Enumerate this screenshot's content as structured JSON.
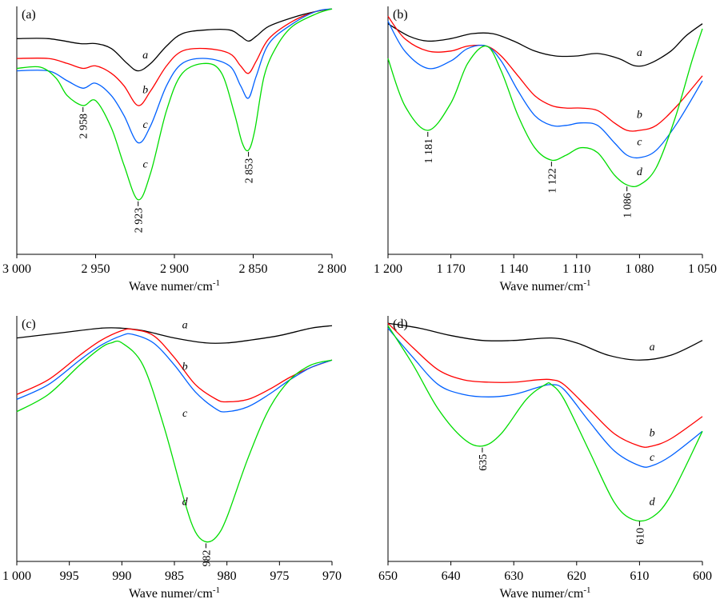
{
  "chart_data": [
    {
      "type": "line",
      "panel": "(a)",
      "xlabel": "Wave numer/cm",
      "xlabel_sup": "-1",
      "xlim": [
        3000,
        2800
      ],
      "xticks": [
        3000,
        2950,
        2900,
        2850,
        2800
      ],
      "xtick_labels": [
        "3 000",
        "2 950",
        "2 900",
        "2 850",
        "2 800"
      ],
      "ylim": [
        0,
        1
      ],
      "series": [
        {
          "name": "a",
          "color": "#000000",
          "x": [
            3000,
            2980,
            2960,
            2950,
            2940,
            2930,
            2923,
            2915,
            2905,
            2895,
            2880,
            2865,
            2858,
            2853,
            2848,
            2840,
            2825,
            2810,
            2800
          ],
          "y": [
            0.87,
            0.87,
            0.85,
            0.85,
            0.83,
            0.77,
            0.74,
            0.77,
            0.84,
            0.89,
            0.905,
            0.905,
            0.88,
            0.86,
            0.88,
            0.92,
            0.955,
            0.98,
            0.99
          ]
        },
        {
          "name": "b",
          "color": "#ff0000",
          "x": [
            3000,
            2980,
            2968,
            2958,
            2950,
            2940,
            2932,
            2923,
            2915,
            2905,
            2895,
            2880,
            2865,
            2858,
            2853,
            2848,
            2840,
            2825,
            2810,
            2800
          ],
          "y": [
            0.79,
            0.79,
            0.77,
            0.75,
            0.76,
            0.73,
            0.68,
            0.6,
            0.66,
            0.76,
            0.82,
            0.83,
            0.81,
            0.76,
            0.73,
            0.78,
            0.87,
            0.94,
            0.98,
            0.99
          ]
        },
        {
          "name": "c",
          "color": "#0060ff",
          "x": [
            3000,
            2980,
            2968,
            2958,
            2950,
            2940,
            2932,
            2923,
            2915,
            2905,
            2895,
            2880,
            2865,
            2858,
            2853,
            2848,
            2840,
            2825,
            2810,
            2800
          ],
          "y": [
            0.74,
            0.74,
            0.7,
            0.67,
            0.69,
            0.64,
            0.56,
            0.45,
            0.52,
            0.68,
            0.77,
            0.79,
            0.76,
            0.68,
            0.63,
            0.72,
            0.85,
            0.93,
            0.98,
            0.99
          ]
        },
        {
          "name": "c",
          "color": "#00dd00",
          "x": [
            3000,
            2985,
            2975,
            2968,
            2958,
            2950,
            2940,
            2932,
            2923,
            2915,
            2905,
            2895,
            2880,
            2870,
            2862,
            2857,
            2853,
            2849,
            2843,
            2835,
            2825,
            2810,
            2800
          ],
          "y": [
            0.75,
            0.755,
            0.71,
            0.64,
            0.6,
            0.62,
            0.51,
            0.36,
            0.22,
            0.33,
            0.58,
            0.73,
            0.77,
            0.73,
            0.57,
            0.45,
            0.42,
            0.5,
            0.72,
            0.84,
            0.92,
            0.97,
            0.99
          ]
        }
      ],
      "curve_labels": [
        {
          "text": "a",
          "x": 2920,
          "y": 0.79
        },
        {
          "text": "b",
          "x": 2920,
          "y": 0.65
        },
        {
          "text": "c",
          "x": 2920,
          "y": 0.51
        },
        {
          "text": "c",
          "x": 2920,
          "y": 0.35
        }
      ],
      "annotations": [
        {
          "text": "2 958",
          "x": 2958,
          "y": 0.6
        },
        {
          "text": "2 923",
          "x": 2923,
          "y": 0.22
        },
        {
          "text": "2 853",
          "x": 2853,
          "y": 0.42
        }
      ]
    },
    {
      "type": "line",
      "panel": "(b)",
      "xlabel": "Wave numer/cm",
      "xlabel_sup": "-1",
      "xlim": [
        1200,
        1050
      ],
      "xticks": [
        1200,
        1170,
        1140,
        1110,
        1080,
        1050
      ],
      "xtick_labels": [
        "1 200",
        "1 170",
        "1 140",
        "1 110",
        "1 080",
        "1 050"
      ],
      "ylim": [
        0,
        1
      ],
      "series": [
        {
          "name": "a",
          "color": "#000000",
          "x": [
            1200,
            1190,
            1181,
            1170,
            1160,
            1150,
            1140,
            1130,
            1120,
            1110,
            1100,
            1090,
            1082,
            1075,
            1065,
            1058,
            1050
          ],
          "y": [
            0.93,
            0.88,
            0.86,
            0.87,
            0.89,
            0.89,
            0.86,
            0.82,
            0.8,
            0.8,
            0.81,
            0.79,
            0.76,
            0.77,
            0.82,
            0.88,
            0.93
          ]
        },
        {
          "name": "b",
          "color": "#ff0000",
          "x": [
            1200,
            1192,
            1181,
            1170,
            1162,
            1153,
            1146,
            1138,
            1130,
            1122,
            1115,
            1108,
            1100,
            1092,
            1086,
            1080,
            1072,
            1062,
            1050
          ],
          "y": [
            0.96,
            0.87,
            0.82,
            0.82,
            0.84,
            0.84,
            0.8,
            0.72,
            0.64,
            0.6,
            0.59,
            0.59,
            0.58,
            0.53,
            0.5,
            0.5,
            0.52,
            0.6,
            0.72
          ]
        },
        {
          "name": "c",
          "color": "#0060ff",
          "x": [
            1200,
            1192,
            1181,
            1170,
            1162,
            1153,
            1146,
            1138,
            1130,
            1122,
            1115,
            1108,
            1100,
            1092,
            1086,
            1080,
            1072,
            1062,
            1050
          ],
          "y": [
            0.94,
            0.82,
            0.75,
            0.78,
            0.83,
            0.84,
            0.78,
            0.66,
            0.56,
            0.52,
            0.52,
            0.53,
            0.52,
            0.45,
            0.4,
            0.39,
            0.42,
            0.53,
            0.7
          ]
        },
        {
          "name": "d",
          "color": "#00dd00",
          "x": [
            1200,
            1192,
            1181,
            1170,
            1162,
            1153,
            1146,
            1138,
            1130,
            1122,
            1115,
            1108,
            1100,
            1092,
            1086,
            1080,
            1072,
            1063,
            1055,
            1050
          ],
          "y": [
            0.79,
            0.6,
            0.5,
            0.61,
            0.77,
            0.84,
            0.74,
            0.56,
            0.43,
            0.38,
            0.4,
            0.43,
            0.41,
            0.32,
            0.28,
            0.28,
            0.35,
            0.55,
            0.78,
            0.91
          ]
        }
      ],
      "curve_labels": [
        {
          "text": "a",
          "x": 1080,
          "y": 0.8
        },
        {
          "text": "b",
          "x": 1080,
          "y": 0.55
        },
        {
          "text": "c",
          "x": 1080,
          "y": 0.44
        },
        {
          "text": "d",
          "x": 1080,
          "y": 0.32
        }
      ],
      "annotations": [
        {
          "text": "1 181",
          "x": 1181,
          "y": 0.5
        },
        {
          "text": "1 122",
          "x": 1122,
          "y": 0.38
        },
        {
          "text": "1 086",
          "x": 1086,
          "y": 0.28
        }
      ]
    },
    {
      "type": "line",
      "panel": "(c)",
      "xlabel": "Wave numer/cm",
      "xlabel_sup": "-1",
      "xlim": [
        1000,
        970
      ],
      "xticks": [
        1000,
        995,
        990,
        985,
        980,
        975,
        970
      ],
      "xtick_labels": [
        "1 000",
        "995",
        "990",
        "985",
        "980",
        "975",
        "970"
      ],
      "ylim": [
        0,
        1
      ],
      "series": [
        {
          "name": "a",
          "color": "#000000",
          "x": [
            1000,
            996,
            992,
            990,
            988,
            985,
            982,
            980,
            978,
            975,
            972,
            970
          ],
          "y": [
            0.91,
            0.93,
            0.95,
            0.95,
            0.94,
            0.91,
            0.89,
            0.89,
            0.9,
            0.92,
            0.95,
            0.96
          ]
        },
        {
          "name": "b",
          "color": "#ff0000",
          "x": [
            1000,
            997,
            994,
            992,
            990,
            989,
            987,
            985,
            983,
            981,
            980,
            978,
            976,
            974,
            972,
            970
          ],
          "y": [
            0.68,
            0.74,
            0.84,
            0.9,
            0.94,
            0.945,
            0.92,
            0.83,
            0.72,
            0.66,
            0.65,
            0.66,
            0.7,
            0.75,
            0.79,
            0.82
          ]
        },
        {
          "name": "c",
          "color": "#0060ff",
          "x": [
            1000,
            997,
            994,
            992,
            990,
            989,
            987,
            985,
            983,
            981,
            980,
            978,
            976,
            974,
            972,
            970
          ],
          "y": [
            0.66,
            0.72,
            0.82,
            0.88,
            0.92,
            0.925,
            0.89,
            0.8,
            0.69,
            0.62,
            0.61,
            0.63,
            0.68,
            0.74,
            0.79,
            0.82
          ]
        },
        {
          "name": "d",
          "color": "#00dd00",
          "x": [
            1000,
            997,
            994,
            992,
            991,
            990,
            988,
            986,
            984,
            983,
            982,
            981,
            980,
            978,
            976,
            974,
            972,
            970
          ],
          "y": [
            0.61,
            0.68,
            0.8,
            0.87,
            0.89,
            0.89,
            0.8,
            0.55,
            0.24,
            0.12,
            0.08,
            0.1,
            0.18,
            0.42,
            0.62,
            0.74,
            0.8,
            0.82
          ]
        }
      ],
      "curve_labels": [
        {
          "text": "a",
          "x": 984,
          "y": 0.95
        },
        {
          "text": "b",
          "x": 984,
          "y": 0.78
        },
        {
          "text": "c",
          "x": 984,
          "y": 0.59
        },
        {
          "text": "d",
          "x": 984,
          "y": 0.23
        }
      ],
      "annotations": [
        {
          "text": "982",
          "x": 982,
          "y": 0.08
        }
      ]
    },
    {
      "type": "line",
      "panel": "(d)",
      "xlabel": "Wave numer/cm",
      "xlabel_sup": "-1",
      "xlim": [
        650,
        600
      ],
      "xticks": [
        650,
        640,
        630,
        620,
        610,
        600
      ],
      "xtick_labels": [
        "650",
        "640",
        "630",
        "620",
        "610",
        "600"
      ],
      "ylim": [
        0,
        1
      ],
      "series": [
        {
          "name": "a",
          "color": "#000000",
          "x": [
            650,
            645,
            640,
            635,
            630,
            624,
            620,
            615,
            610,
            605,
            600
          ],
          "y": [
            0.97,
            0.95,
            0.92,
            0.9,
            0.9,
            0.91,
            0.89,
            0.84,
            0.82,
            0.84,
            0.9
          ]
        },
        {
          "name": "b",
          "color": "#ff0000",
          "x": [
            650,
            646,
            642,
            638,
            634,
            630,
            626,
            624,
            622,
            618,
            614,
            610,
            608,
            605,
            600
          ],
          "y": [
            0.97,
            0.87,
            0.78,
            0.74,
            0.73,
            0.73,
            0.74,
            0.74,
            0.72,
            0.62,
            0.52,
            0.47,
            0.47,
            0.5,
            0.59
          ]
        },
        {
          "name": "c",
          "color": "#0060ff",
          "x": [
            650,
            646,
            642,
            638,
            634,
            630,
            626,
            624,
            622,
            618,
            614,
            610,
            608,
            605,
            600
          ],
          "y": [
            0.95,
            0.83,
            0.72,
            0.68,
            0.67,
            0.68,
            0.71,
            0.72,
            0.7,
            0.57,
            0.45,
            0.39,
            0.39,
            0.43,
            0.53
          ]
        },
        {
          "name": "d",
          "color": "#00dd00",
          "x": [
            650,
            646,
            642,
            638,
            635,
            632,
            628,
            625,
            624,
            622,
            618,
            614,
            611,
            608,
            605,
            600
          ],
          "y": [
            0.96,
            0.8,
            0.62,
            0.5,
            0.47,
            0.52,
            0.66,
            0.72,
            0.72,
            0.66,
            0.45,
            0.24,
            0.17,
            0.18,
            0.27,
            0.53
          ]
        }
      ],
      "curve_labels": [
        {
          "text": "a",
          "x": 608,
          "y": 0.86
        },
        {
          "text": "b",
          "x": 608,
          "y": 0.51
        },
        {
          "text": "c",
          "x": 608,
          "y": 0.41
        },
        {
          "text": "d",
          "x": 608,
          "y": 0.23
        }
      ],
      "annotations": [
        {
          "text": "635",
          "x": 635,
          "y": 0.47
        },
        {
          "text": "610",
          "x": 610,
          "y": 0.17
        }
      ]
    }
  ]
}
